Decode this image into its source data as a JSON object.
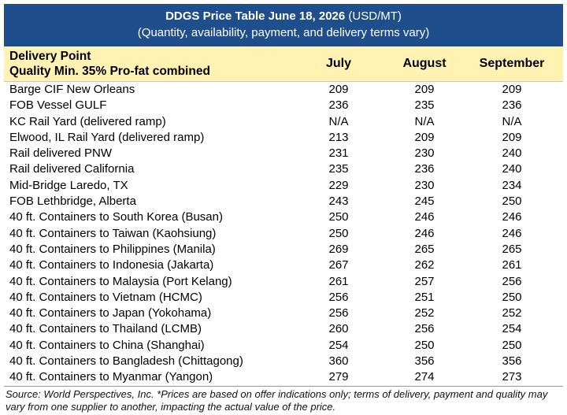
{
  "title": {
    "bold": "DDGS Price Table June 18, 2026",
    "unit": " (USD/MT)",
    "subtitle": "(Quantity, availability, payment, and delivery terms vary)"
  },
  "header": {
    "line1": "Delivery Point",
    "line2": "Quality Min. 35% Pro-fat combined",
    "columns": [
      "July",
      "August",
      "September"
    ]
  },
  "rows": [
    {
      "name": "Barge CIF New Orleans",
      "values": [
        "209",
        "209",
        "209"
      ]
    },
    {
      "name": "FOB Vessel GULF",
      "values": [
        "236",
        "235",
        "236"
      ]
    },
    {
      "name": "KC Rail Yard (delivered ramp)",
      "values": [
        "N/A",
        "N/A",
        "N/A"
      ]
    },
    {
      "name": "Elwood, IL Rail Yard (delivered ramp)",
      "values": [
        "213",
        "209",
        "209"
      ]
    },
    {
      "name": "Rail delivered PNW",
      "values": [
        "231",
        "230",
        "240"
      ]
    },
    {
      "name": "Rail delivered California",
      "values": [
        "235",
        "236",
        "240"
      ]
    },
    {
      "name": "Mid-Bridge Laredo, TX",
      "values": [
        "229",
        "230",
        "234"
      ]
    },
    {
      "name": "FOB Lethbridge, Alberta",
      "values": [
        "243",
        "245",
        "250"
      ]
    },
    {
      "name": "40 ft. Containers to South Korea (Busan)",
      "values": [
        "250",
        "246",
        "246"
      ]
    },
    {
      "name": "40 ft. Containers to Taiwan (Kaohsiung)",
      "values": [
        "250",
        "246",
        "246"
      ]
    },
    {
      "name": "40 ft. Containers to Philippines (Manila)",
      "values": [
        "269",
        "265",
        "265"
      ]
    },
    {
      "name": "40 ft. Containers to Indonesia (Jakarta)",
      "values": [
        "267",
        "262",
        "261"
      ]
    },
    {
      "name": "40 ft. Containers to Malaysia (Port Kelang)",
      "values": [
        "261",
        "257",
        "256"
      ]
    },
    {
      "name": "40 ft. Containers to Vietnam (HCMC)",
      "values": [
        "256",
        "251",
        "250"
      ]
    },
    {
      "name": "40 ft. Containers to Japan (Yokohama)",
      "values": [
        "256",
        "252",
        "252"
      ]
    },
    {
      "name": "40 ft. Containers to Thailand (LCMB)",
      "values": [
        "260",
        "256",
        "254"
      ]
    },
    {
      "name": "40 ft. Containers to China (Shanghai)",
      "values": [
        "254",
        "250",
        "250"
      ]
    },
    {
      "name": "40 ft. Containers to Bangladesh (Chittagong)",
      "values": [
        "360",
        "356",
        "356"
      ]
    },
    {
      "name": "40 ft. Containers to Myanmar (Yangon)",
      "values": [
        "279",
        "274",
        "273"
      ]
    }
  ],
  "source": "Source: World Perspectives, Inc. *Prices are based on offer indications only; terms of delivery, payment and quality may vary from one supplier to another, impacting the actual value of the price."
}
